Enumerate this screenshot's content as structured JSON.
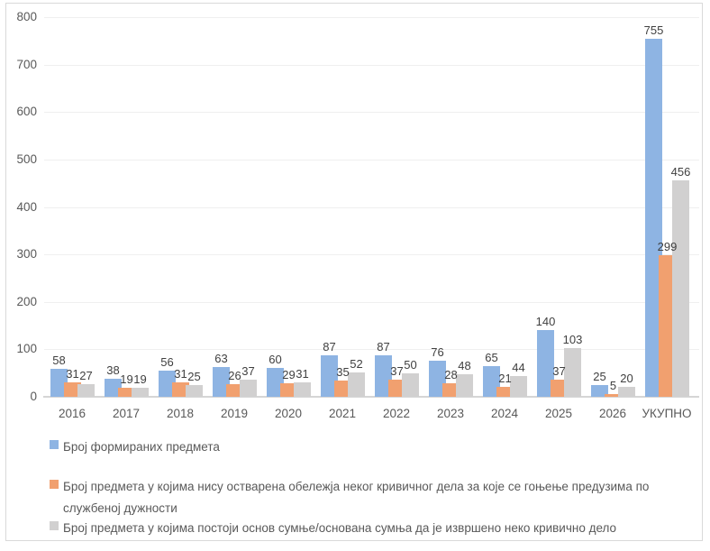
{
  "chart_data": {
    "type": "bar",
    "categories": [
      "2016",
      "2017",
      "2018",
      "2019",
      "2020",
      "2021",
      "2022",
      "2023",
      "2024",
      "2025",
      "2026",
      "УКУПНО"
    ],
    "series": [
      {
        "name": "Број формираних предмета",
        "color": "#8eb4e3",
        "values": [
          58,
          38,
          56,
          63,
          60,
          87,
          87,
          76,
          65,
          140,
          25,
          755
        ]
      },
      {
        "name": "Број предмета у којима нису остварена обележја неког кривичног дела за које се гоњење предузима по службеној дужности",
        "color": "#f1a06f",
        "values": [
          31,
          19,
          31,
          26,
          29,
          35,
          37,
          28,
          21,
          37,
          5,
          299
        ]
      },
      {
        "name": "Број предмета у којима постоји основ сумње/основана сумња да је извршено неко кривично дело",
        "color": "#d1d0d0",
        "values": [
          27,
          19,
          25,
          37,
          31,
          52,
          50,
          48,
          44,
          103,
          20,
          456
        ]
      }
    ],
    "title": "",
    "xlabel": "",
    "ylabel": "",
    "ylim": [
      0,
      800
    ],
    "yticks": [
      0,
      100,
      200,
      300,
      400,
      500,
      600,
      700,
      800
    ],
    "grid": true,
    "data_labels": true,
    "legend_position": "bottom-left"
  },
  "legend": {
    "items": [
      {
        "color": "#8eb4e3",
        "lines": [
          "Број формираних предмета"
        ]
      },
      {
        "color": "#f1a06f",
        "lines": [
          "Број предмета у којима нису остварена обележја неког кривичног дела за које се гоњење предузима по",
          "службеној дужности"
        ]
      },
      {
        "color": "#d1d0d0",
        "lines": [
          "Број предмета у којима постоји основ сумње/основана сумња да је извршено неко кривично дело"
        ]
      }
    ]
  },
  "colors": {
    "background": "#ffffff",
    "border": "#d9d9d9",
    "gridline": "#efefef",
    "axis_line": "#d6d6d6",
    "tick_text": "#595959",
    "data_label_text": "#404040"
  }
}
